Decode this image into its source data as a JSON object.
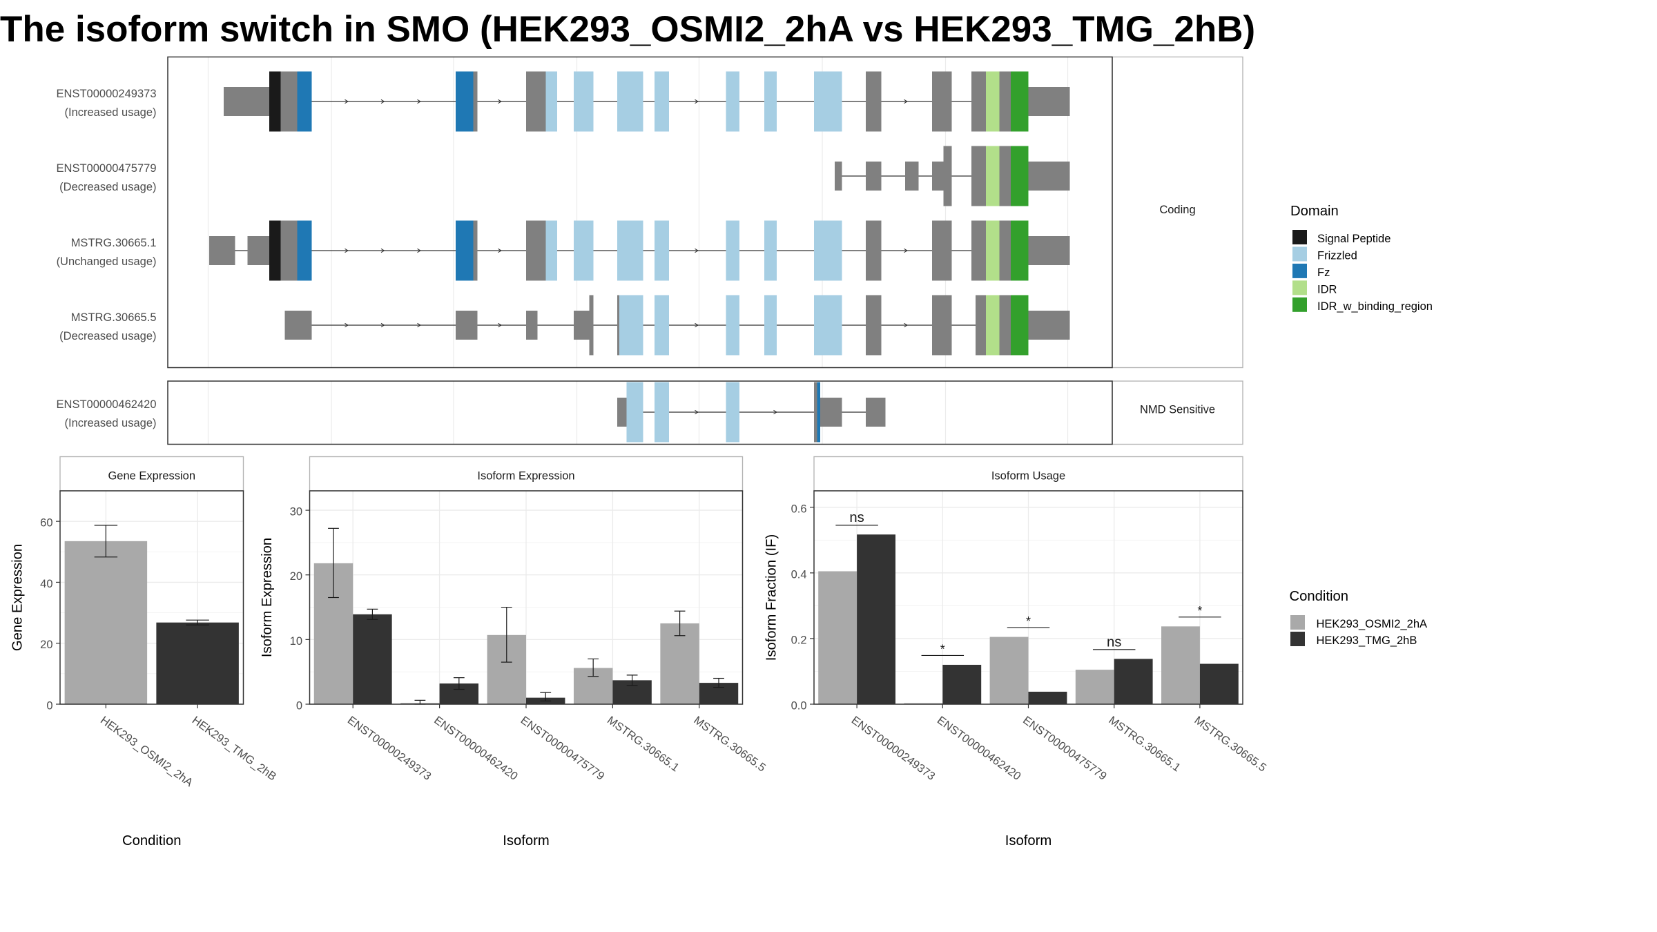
{
  "title": "The isoform switch in SMO (HEK293_OSMI2_2hA vs HEK293_TMG_2hB)",
  "colors": {
    "signal_peptide": "#1a1a1a",
    "frizzled": "#a6cee3",
    "fz": "#1f78b4",
    "idr": "#b2df8a",
    "idr_binding": "#33a02c",
    "exon_plain": "#808080",
    "condition_a": "#a9a9a9",
    "condition_b": "#333333"
  },
  "legend_domain": {
    "title": "Domain",
    "items": [
      "Signal Peptide",
      "Frizzled",
      "Fz",
      "IDR",
      "IDR_w_binding_region"
    ]
  },
  "legend_condition": {
    "title": "Condition",
    "items": [
      "HEK293_OSMI2_2hA",
      "HEK293_TMG_2hB"
    ]
  },
  "chart_data": [
    {
      "type": "gene-structure",
      "facets": [
        {
          "label": "Coding",
          "transcripts": [
            {
              "id": "ENST00000249373",
              "usage": "(Increased usage)"
            },
            {
              "id": "ENST00000475779",
              "usage": "(Decreased usage)"
            },
            {
              "id": "MSTRG.30665.1",
              "usage": "(Unchanged usage)"
            },
            {
              "id": "MSTRG.30665.5",
              "usage": "(Decreased usage)"
            }
          ]
        },
        {
          "label": "NMD Sensitive",
          "transcripts": [
            {
              "id": "ENST00000462420",
              "usage": "(Increased usage)"
            }
          ]
        }
      ]
    },
    {
      "type": "bar",
      "title": "Gene Expression",
      "xlabel": "Condition",
      "ylabel": "Gene Expression",
      "categories": [
        "HEK293_OSMI2_2hA",
        "HEK293_TMG_2hB"
      ],
      "series": [
        {
          "values": [
            53.5,
            26.8
          ],
          "err_low": [
            48.3,
            26.0
          ],
          "err_high": [
            58.7,
            27.6
          ]
        }
      ],
      "ylim": [
        0,
        70
      ],
      "yticks": [
        0,
        20,
        40,
        60
      ],
      "grid": true
    },
    {
      "type": "bar",
      "title": "Isoform Expression",
      "xlabel": "Isoform",
      "ylabel": "Isoform Expression",
      "categories": [
        "ENST00000249373",
        "ENST00000462420",
        "ENST00000475779",
        "MSTRG.30665.1",
        "MSTRG.30665.5"
      ],
      "series": [
        {
          "name": "HEK293_OSMI2_2hA",
          "values": [
            21.8,
            0.2,
            10.7,
            5.6,
            12.5
          ],
          "err_low": [
            16.5,
            0.0,
            6.5,
            4.3,
            10.6
          ],
          "err_high": [
            27.2,
            0.6,
            15.0,
            7.0,
            14.4
          ]
        },
        {
          "name": "HEK293_TMG_2hB",
          "values": [
            13.9,
            3.2,
            1.0,
            3.7,
            3.3
          ],
          "err_low": [
            13.1,
            2.3,
            0.5,
            2.9,
            2.6
          ],
          "err_high": [
            14.7,
            4.1,
            1.8,
            4.5,
            4.0
          ]
        }
      ],
      "ylim": [
        0,
        33
      ],
      "yticks": [
        0,
        10,
        20,
        30
      ],
      "grid": true
    },
    {
      "type": "bar",
      "title": "Isoform Usage",
      "xlabel": "Isoform",
      "ylabel": "Isoform Fraction (IF)",
      "categories": [
        "ENST00000249373",
        "ENST00000462420",
        "ENST00000475779",
        "MSTRG.30665.1",
        "MSTRG.30665.5"
      ],
      "series": [
        {
          "name": "HEK293_OSMI2_2hA",
          "values": [
            0.405,
            0.003,
            0.205,
            0.105,
            0.237
          ]
        },
        {
          "name": "HEK293_TMG_2hB",
          "values": [
            0.517,
            0.12,
            0.038,
            0.138,
            0.123
          ]
        }
      ],
      "significance": [
        "ns",
        "*",
        "*",
        "ns",
        "*"
      ],
      "ylim": [
        0,
        0.65
      ],
      "yticks": [
        "0.0",
        "0.2",
        "0.4",
        "0.6"
      ],
      "grid": true
    }
  ]
}
